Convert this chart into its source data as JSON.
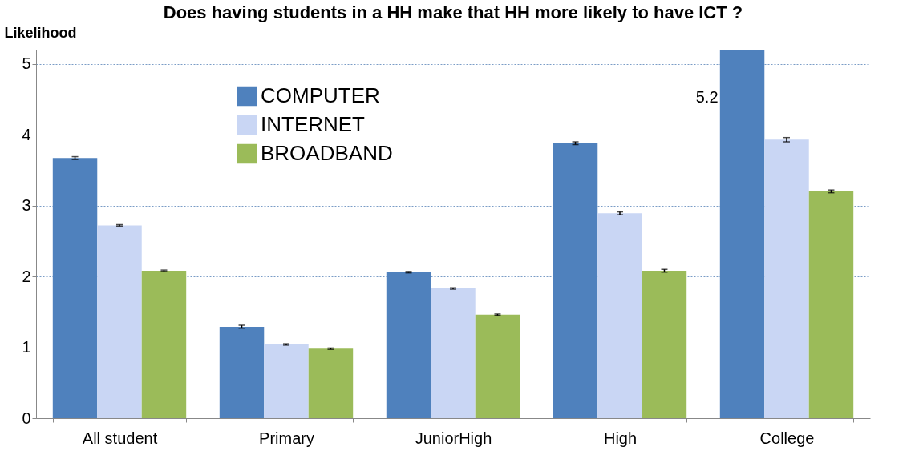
{
  "chart_data": {
    "type": "bar",
    "title": "Does having students in a HH make that HH more likely to have ICT ?",
    "ylabel": "Likelihood",
    "categories": [
      "All student",
      "Primary",
      "JuniorHigh",
      "High",
      "College"
    ],
    "series": [
      {
        "name": "COMPUTER",
        "color": "#4f81bd",
        "values": [
          3.67,
          1.29,
          2.06,
          3.88,
          5.2
        ],
        "errors": [
          0.02,
          0.02,
          0.01,
          0.02,
          null
        ],
        "value_labels": [
          null,
          null,
          null,
          null,
          "5.2"
        ]
      },
      {
        "name": "INTERNET",
        "color": "#c9d6f4",
        "values": [
          2.72,
          1.04,
          1.83,
          2.89,
          3.93
        ],
        "errors": [
          0.01,
          0.01,
          0.01,
          0.02,
          0.03
        ]
      },
      {
        "name": "BROADBAND",
        "color": "#9bbb59",
        "values": [
          2.08,
          0.98,
          1.46,
          2.08,
          3.2
        ],
        "errors": [
          0.01,
          0.01,
          0.01,
          0.02,
          0.02
        ]
      }
    ],
    "ylim": [
      0,
      5.2
    ],
    "yticks": [
      0,
      1,
      2,
      3,
      4,
      5
    ],
    "grid": "y",
    "legend": "top left"
  }
}
